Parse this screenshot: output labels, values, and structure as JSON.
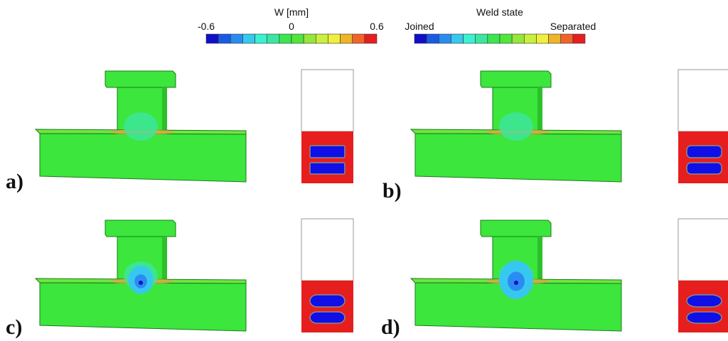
{
  "legends": [
    {
      "title": "W [mm]",
      "labels": [
        "-0.6",
        "0",
        "0.6"
      ]
    },
    {
      "title": "Weld state",
      "labels": [
        "Joined",
        "Separated"
      ]
    }
  ],
  "panels": [
    {
      "label": "a)"
    },
    {
      "label": "b)"
    },
    {
      "label": "c)"
    },
    {
      "label": "d)"
    }
  ]
}
